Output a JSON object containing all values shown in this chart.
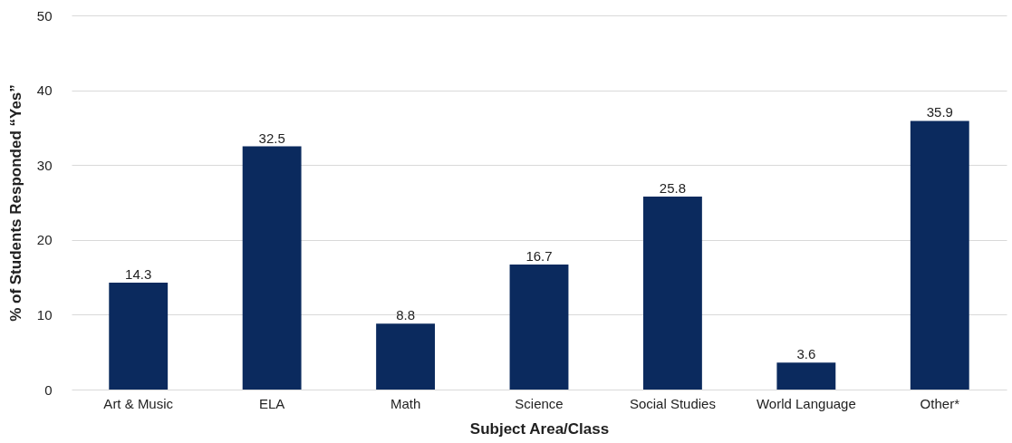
{
  "chart_data": {
    "type": "bar",
    "xlabel": "Subject Area/Class",
    "ylabel": "% of Students Responded “Yes”",
    "categories": [
      "Art & Music",
      "ELA",
      "Math",
      "Science",
      "Social Studies",
      "World Language",
      "Other*"
    ],
    "values": [
      14.3,
      32.5,
      8.8,
      16.7,
      25.8,
      3.6,
      35.9
    ],
    "color": "#0b2a5e",
    "ylim": [
      0,
      50
    ],
    "yticks": [
      0,
      10,
      20,
      30,
      40,
      50
    ],
    "grid": "y",
    "data_labels": true
  }
}
